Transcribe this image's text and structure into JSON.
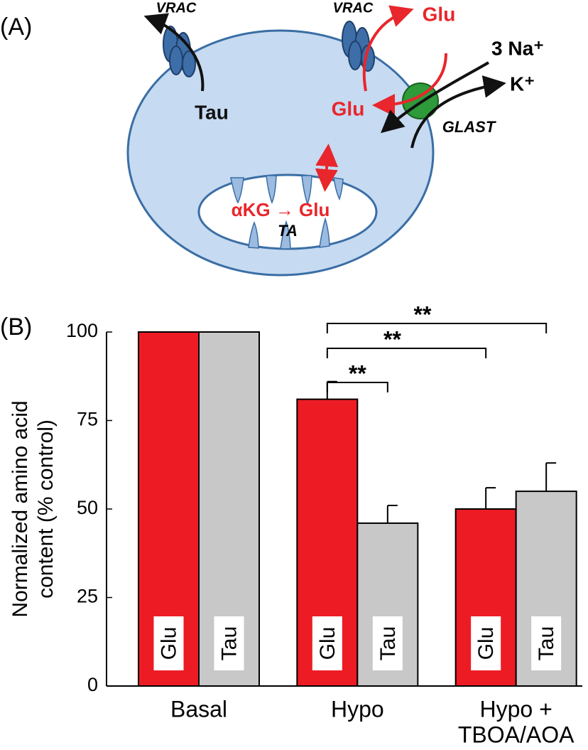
{
  "panel_a": {
    "label": "(A)",
    "vrac_left": "VRAC",
    "vrac_right": "VRAC",
    "tau": "Tau",
    "glu_out": "Glu",
    "glu_in": "Glu",
    "na": "3 Na⁺",
    "k": "K⁺",
    "glast": "GLAST",
    "reaction": "αKG → Glu",
    "ta": "TA"
  },
  "chart_data": {
    "type": "bar",
    "panel_label": "(B)",
    "ylabel": [
      "Normalized amino acid",
      "content (% control)"
    ],
    "categories": [
      [
        "Basal"
      ],
      [
        "Hypo"
      ],
      [
        "Hypo +",
        "TBOA/AOA"
      ]
    ],
    "series": [
      {
        "name": "Glu",
        "color": "#ed1c24",
        "values": [
          100,
          81,
          50
        ],
        "errors": [
          null,
          5,
          6
        ]
      },
      {
        "name": "Tau",
        "color": "#c8c8c8",
        "values": [
          100,
          46,
          55
        ],
        "errors": [
          null,
          5,
          8
        ]
      }
    ],
    "ylim": [
      0,
      100
    ],
    "yticks": [
      0,
      25,
      50,
      75,
      100
    ],
    "significance": [
      {
        "label": "**"
      },
      {
        "label": "**"
      },
      {
        "label": "**"
      }
    ]
  }
}
